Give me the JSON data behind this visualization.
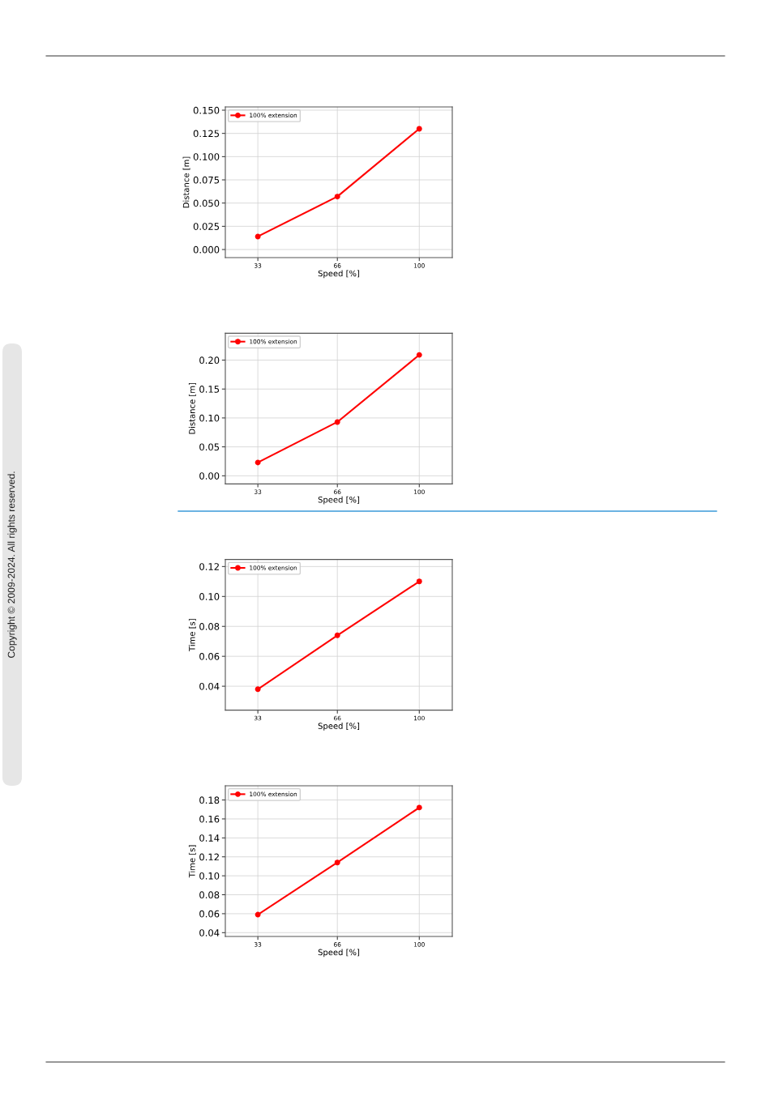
{
  "chart_data": [
    {
      "type": "line",
      "xlabel": "Speed [%]",
      "ylabel": "Distance [m]",
      "x": [
        33,
        66,
        100
      ],
      "xlim": [
        19.5,
        113.7
      ],
      "xticks": [
        33,
        66,
        100
      ],
      "ylim": [
        -0.0087,
        0.1535
      ],
      "yticks": [
        {
          "value": 0.0,
          "label": "0.000"
        },
        {
          "value": 0.025,
          "label": "0.025"
        },
        {
          "value": 0.05,
          "label": "0.050"
        },
        {
          "value": 0.075,
          "label": "0.075"
        },
        {
          "value": 0.1,
          "label": "0.100"
        },
        {
          "value": 0.125,
          "label": "0.125"
        },
        {
          "value": 0.15,
          "label": "0.150"
        }
      ],
      "series": [
        {
          "name": "100% extension",
          "color": "#ff0000",
          "values": [
            0.014,
            0.057,
            0.13
          ]
        }
      ],
      "grid": true,
      "legend": "top left",
      "marker": "circle",
      "line_style": "solid",
      "annotations": [
        "Copyright © 2009-2024. All rights reserved."
      ]
    },
    {
      "type": "line",
      "xlabel": "Speed [%]",
      "ylabel": "Distance [m]",
      "x": [
        33,
        66,
        100
      ],
      "xlim": [
        19.5,
        113.7
      ],
      "xticks": [
        33,
        66,
        100
      ],
      "ylim": [
        -0.014,
        0.2465
      ],
      "yticks": [
        {
          "value": 0.0,
          "label": "0.00"
        },
        {
          "value": 0.05,
          "label": "0.05"
        },
        {
          "value": 0.1,
          "label": "0.10"
        },
        {
          "value": 0.15,
          "label": "0.15"
        },
        {
          "value": 0.2,
          "label": "0.20"
        }
      ],
      "series": [
        {
          "name": "100% extension",
          "color": "#ff0000",
          "values": [
            0.023,
            0.093,
            0.209
          ]
        }
      ],
      "grid": true,
      "legend": "top left",
      "marker": "circle",
      "line_style": "solid"
    },
    {
      "type": "line",
      "xlabel": "Speed [%]",
      "ylabel": "Time [s]",
      "x": [
        33,
        66,
        100
      ],
      "xlim": [
        19.5,
        113.7
      ],
      "xticks": [
        33,
        66,
        100
      ],
      "ylim": [
        0.024,
        0.1247
      ],
      "yticks": [
        {
          "value": 0.04,
          "label": "0.04"
        },
        {
          "value": 0.06,
          "label": "0.06"
        },
        {
          "value": 0.08,
          "label": "0.08"
        },
        {
          "value": 0.1,
          "label": "0.10"
        },
        {
          "value": 0.12,
          "label": "0.12"
        }
      ],
      "series": [
        {
          "name": "100% extension",
          "color": "#ff0000",
          "values": [
            0.038,
            0.074,
            0.11
          ]
        }
      ],
      "grid": true,
      "legend": "top left",
      "marker": "circle",
      "line_style": "solid"
    },
    {
      "type": "line",
      "xlabel": "Speed [%]",
      "ylabel": "Time [s]",
      "x": [
        33,
        66,
        100
      ],
      "xlim": [
        19.5,
        113.7
      ],
      "xticks": [
        33,
        66,
        100
      ],
      "ylim": [
        0.036,
        0.195
      ],
      "yticks": [
        {
          "value": 0.04,
          "label": "0.04"
        },
        {
          "value": 0.06,
          "label": "0.06"
        },
        {
          "value": 0.08,
          "label": "0.08"
        },
        {
          "value": 0.1,
          "label": "0.10"
        },
        {
          "value": 0.12,
          "label": "0.12"
        },
        {
          "value": 0.14,
          "label": "0.14"
        },
        {
          "value": 0.16,
          "label": "0.16"
        },
        {
          "value": 0.18,
          "label": "0.18"
        }
      ],
      "series": [
        {
          "name": "100% extension",
          "color": "#ff0000",
          "values": [
            0.059,
            0.114,
            0.172
          ]
        }
      ],
      "grid": true,
      "legend": "top left",
      "marker": "circle",
      "line_style": "solid"
    }
  ]
}
